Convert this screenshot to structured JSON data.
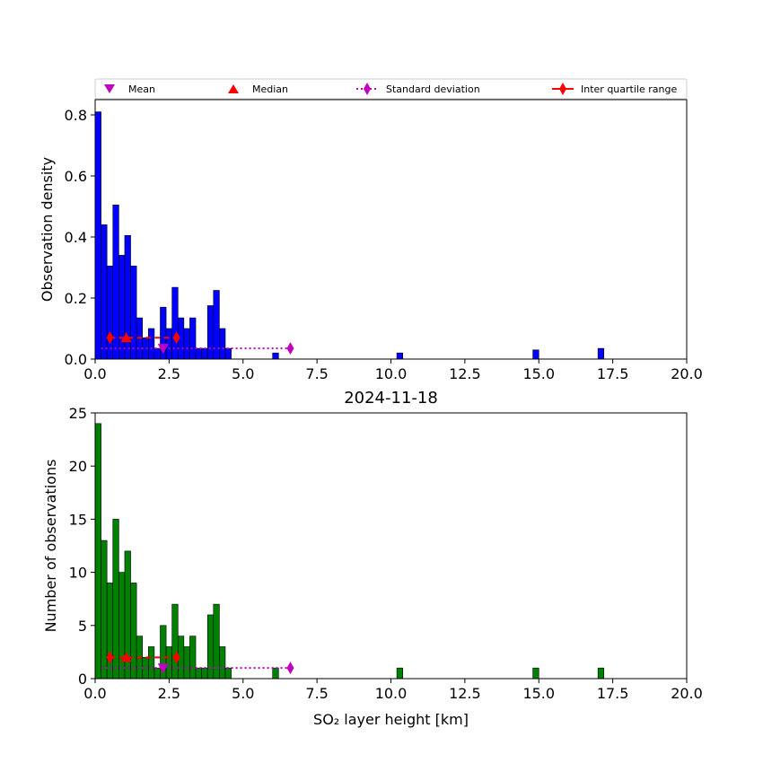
{
  "chart_data": [
    {
      "type": "bar",
      "title": "",
      "xlabel": "",
      "ylabel": "Observation density",
      "xlim": [
        0,
        20
      ],
      "ylim": [
        0,
        0.85
      ],
      "xticks": [
        "0.0",
        "2.5",
        "5.0",
        "7.5",
        "10.0",
        "12.5",
        "15.0",
        "17.5",
        "20.0"
      ],
      "yticks": [
        "0.0",
        "0.2",
        "0.4",
        "0.6",
        "0.8"
      ],
      "ytick_values": [
        0,
        0.2,
        0.4,
        0.6,
        0.8
      ],
      "bar_color": "#0000ff",
      "bin_width": 0.2,
      "bins": [
        {
          "x": 0.0,
          "v": 0.81
        },
        {
          "x": 0.2,
          "v": 0.44
        },
        {
          "x": 0.4,
          "v": 0.305
        },
        {
          "x": 0.6,
          "v": 0.505
        },
        {
          "x": 0.8,
          "v": 0.34
        },
        {
          "x": 1.0,
          "v": 0.405
        },
        {
          "x": 1.2,
          "v": 0.305
        },
        {
          "x": 1.4,
          "v": 0.135
        },
        {
          "x": 1.6,
          "v": 0.07
        },
        {
          "x": 1.8,
          "v": 0.1
        },
        {
          "x": 2.0,
          "v": 0.035
        },
        {
          "x": 2.2,
          "v": 0.17
        },
        {
          "x": 2.4,
          "v": 0.1
        },
        {
          "x": 2.6,
          "v": 0.235
        },
        {
          "x": 2.8,
          "v": 0.135
        },
        {
          "x": 3.0,
          "v": 0.1
        },
        {
          "x": 3.2,
          "v": 0.135
        },
        {
          "x": 3.4,
          "v": 0.035
        },
        {
          "x": 3.6,
          "v": 0.035
        },
        {
          "x": 3.8,
          "v": 0.175
        },
        {
          "x": 4.0,
          "v": 0.225
        },
        {
          "x": 4.2,
          "v": 0.1
        },
        {
          "x": 4.4,
          "v": 0.035
        },
        {
          "x": 6.0,
          "v": 0.02
        },
        {
          "x": 10.2,
          "v": 0.02
        },
        {
          "x": 14.8,
          "v": 0.03
        },
        {
          "x": 17.0,
          "v": 0.035
        }
      ],
      "stats": {
        "mean": {
          "x": 2.3,
          "y": 0.035
        },
        "median": {
          "x": 1.05,
          "y": 0.07
        },
        "std": {
          "x0": 0.2,
          "x1": 6.6,
          "y": 0.035
        },
        "iqr": {
          "x0": 0.5,
          "x1": 2.75,
          "y": 0.07
        }
      }
    },
    {
      "type": "bar",
      "title": "2024-11-18",
      "xlabel": "SO₂ layer height [km]",
      "ylabel": "Number of observations",
      "xlim": [
        0,
        20
      ],
      "ylim": [
        0,
        25
      ],
      "xticks": [
        "0.0",
        "2.5",
        "5.0",
        "7.5",
        "10.0",
        "12.5",
        "15.0",
        "17.5",
        "20.0"
      ],
      "yticks": [
        "0",
        "5",
        "10",
        "15",
        "20",
        "25"
      ],
      "ytick_values": [
        0,
        5,
        10,
        15,
        20,
        25
      ],
      "bar_color": "#008000",
      "bin_width": 0.2,
      "bins": [
        {
          "x": 0.0,
          "v": 24
        },
        {
          "x": 0.2,
          "v": 13
        },
        {
          "x": 0.4,
          "v": 9
        },
        {
          "x": 0.6,
          "v": 15
        },
        {
          "x": 0.8,
          "v": 10
        },
        {
          "x": 1.0,
          "v": 12
        },
        {
          "x": 1.2,
          "v": 9
        },
        {
          "x": 1.4,
          "v": 4
        },
        {
          "x": 1.6,
          "v": 2
        },
        {
          "x": 1.8,
          "v": 3
        },
        {
          "x": 2.0,
          "v": 1
        },
        {
          "x": 2.2,
          "v": 5
        },
        {
          "x": 2.4,
          "v": 3
        },
        {
          "x": 2.6,
          "v": 7
        },
        {
          "x": 2.8,
          "v": 4
        },
        {
          "x": 3.0,
          "v": 3
        },
        {
          "x": 3.2,
          "v": 4
        },
        {
          "x": 3.4,
          "v": 1
        },
        {
          "x": 3.6,
          "v": 1
        },
        {
          "x": 3.8,
          "v": 6
        },
        {
          "x": 4.0,
          "v": 7
        },
        {
          "x": 4.2,
          "v": 3
        },
        {
          "x": 4.4,
          "v": 1
        },
        {
          "x": 6.0,
          "v": 1
        },
        {
          "x": 10.2,
          "v": 1
        },
        {
          "x": 14.8,
          "v": 1
        },
        {
          "x": 17.0,
          "v": 1
        }
      ],
      "stats": {
        "mean": {
          "x": 2.3,
          "y": 1
        },
        "median": {
          "x": 1.05,
          "y": 2
        },
        "std": {
          "x0": 0.2,
          "x1": 6.6,
          "y": 1
        },
        "iqr": {
          "x0": 0.5,
          "x1": 2.75,
          "y": 2
        }
      }
    }
  ],
  "legend": {
    "placement": "top",
    "mean_label": "Mean",
    "median_label": "Median",
    "std_label": "Standard deviation",
    "iqr_label": "Inter quartile range",
    "mean_color": "#c000c0",
    "median_color": "#ff0000",
    "std_color": "#c000c0",
    "iqr_color": "#ff0000"
  }
}
